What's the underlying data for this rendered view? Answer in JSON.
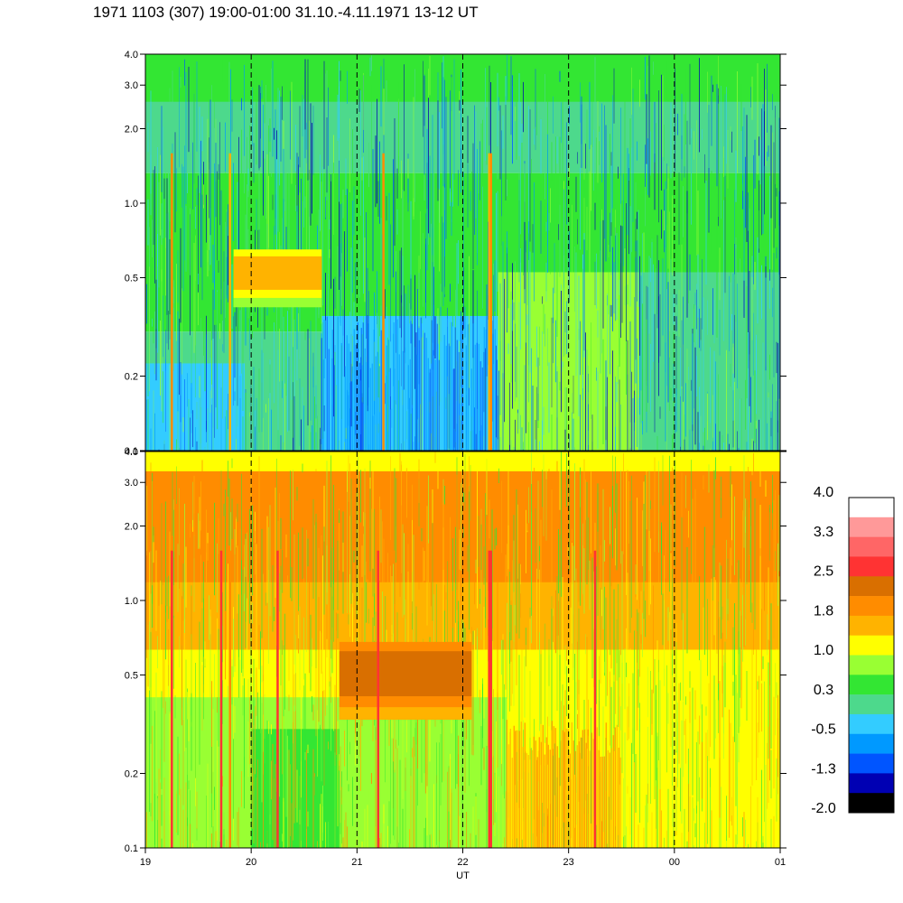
{
  "title": "1971 1103 (307) 19:00-01:00 31.10.-4.11.1971  13-12 UT",
  "chart_data": {
    "type": "heatmap",
    "title": "1971 1103 (307) 19:00-01:00 31.10.-4.11.1971  13-12 UT",
    "xlabel": "UT",
    "x_ticks": [
      "19",
      "20",
      "21",
      "22",
      "23",
      "00",
      "01"
    ],
    "y_scale": "log",
    "ylim": [
      0.1,
      4.0
    ],
    "y_ticks": [
      0.1,
      0.2,
      0.5,
      1.0,
      2.0,
      3.0,
      4.0
    ],
    "y_tick_labels": [
      "0.1",
      "0.2",
      "0.5",
      "1.0",
      "2.0",
      "3.0",
      "4.0"
    ],
    "dashed_gridlines_at": [
      "20",
      "21",
      "22",
      "23",
      "00"
    ],
    "panels": [
      {
        "name": "upper",
        "dominant_range": "-0.5 to 0.3",
        "features": [
          {
            "label": "band",
            "x_start": "19:50",
            "x_end": "20:40",
            "y_start": 0.38,
            "y_end": 0.65,
            "level": 1.8
          },
          {
            "label": "low region",
            "x_start": "20:40",
            "x_end": "22:20",
            "y_start": 0.1,
            "y_end": 0.35,
            "level": -1.3
          }
        ]
      },
      {
        "name": "lower",
        "dominant_range": "0.3 to 1.8",
        "features": [
          {
            "label": "band",
            "x_start": "20:50",
            "x_end": "22:05",
            "y_start": 0.33,
            "y_end": 0.68,
            "level": 2.5
          },
          {
            "label": "enhanced region",
            "x_start": "22:25",
            "x_end": "23:30",
            "y_start": 0.1,
            "y_end": 0.33,
            "level": 1.8
          }
        ]
      }
    ],
    "colorbar": {
      "levels_top_to_bottom": [
        "#ffffff",
        "#ff9999",
        "#ff6666",
        "#ff3333",
        "#d96f00",
        "#ff8c00",
        "#ffb300",
        "#ffff00",
        "#99ff33",
        "#33e633",
        "#4dd98c",
        "#33ccff",
        "#0099ff",
        "#0055ff",
        "#0000b3",
        "#000000"
      ],
      "labels": [
        "4.0",
        "3.3",
        "2.5",
        "1.8",
        "1.0",
        "0.3",
        "-0.5",
        "-1.3",
        "-2.0"
      ]
    }
  }
}
